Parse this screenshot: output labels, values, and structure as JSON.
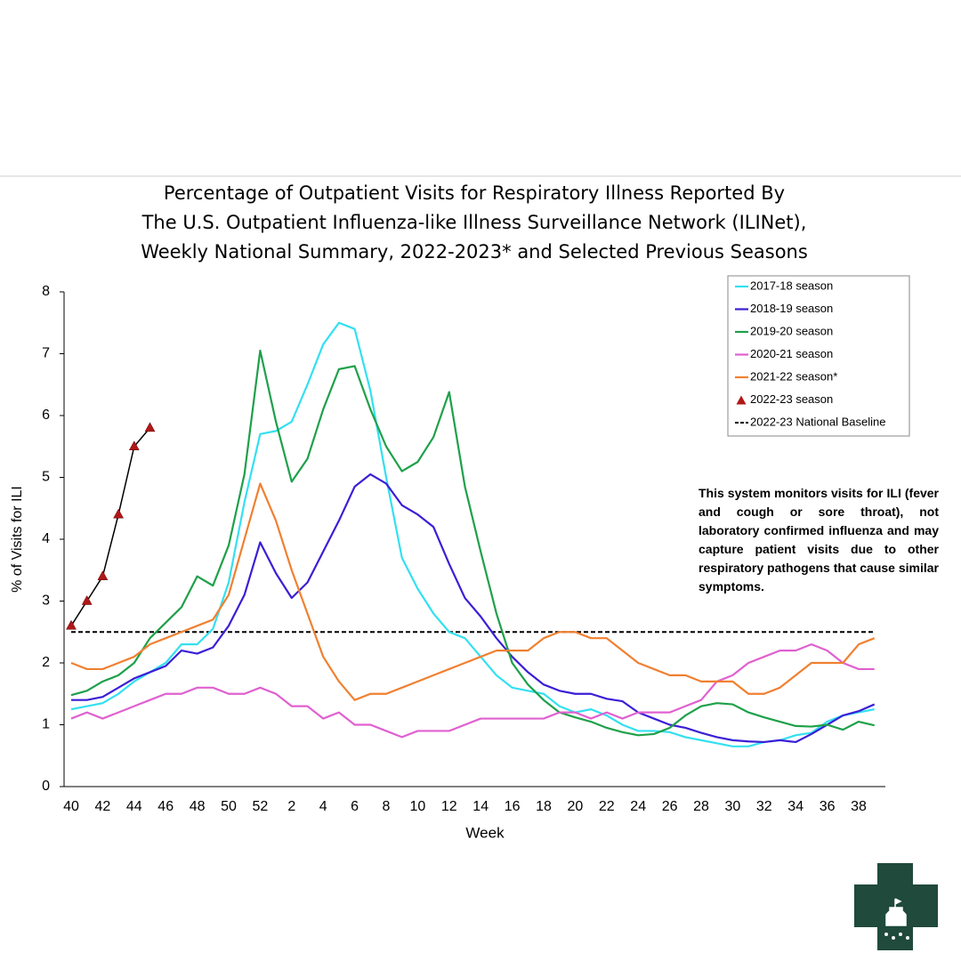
{
  "chart_data": {
    "type": "line",
    "title": [
      "Percentage of Outpatient Visits for Respiratory Illness Reported By",
      "The U.S. Outpatient Influenza-like Illness Surveillance Network (ILINet),",
      "Weekly National Summary, 2022-2023* and Selected Previous Seasons"
    ],
    "x_label": "Week",
    "y_label": "% of Visits for ILI",
    "categories": [
      "40",
      null,
      "42",
      null,
      "44",
      null,
      "46",
      null,
      "48",
      null,
      "50",
      null,
      "52",
      null,
      "2",
      null,
      "4",
      null,
      "6",
      null,
      "8",
      null,
      "10",
      null,
      "12",
      null,
      "14",
      null,
      "16",
      null,
      "18",
      null,
      "20",
      null,
      "22",
      null,
      "24",
      null,
      "26",
      null,
      "28",
      null,
      "30",
      null,
      "32",
      null,
      "34",
      null,
      "36",
      null,
      "38",
      null
    ],
    "ylim": [
      0,
      8
    ],
    "yticks": [
      0,
      1,
      2,
      3,
      4,
      5,
      6,
      7,
      8
    ],
    "series": [
      {
        "name": "2017-18 season",
        "color": "#33e0f0",
        "values": [
          1.25,
          1.3,
          1.35,
          1.5,
          1.7,
          1.85,
          2.0,
          2.3,
          2.3,
          2.55,
          3.3,
          4.6,
          5.7,
          5.75,
          5.9,
          6.5,
          7.15,
          7.5,
          7.4,
          6.4,
          5.0,
          3.7,
          3.2,
          2.8,
          2.5,
          2.4,
          2.1,
          1.8,
          1.6,
          1.55,
          1.5,
          1.3,
          1.2,
          1.25,
          1.15,
          1.0,
          0.9,
          0.9,
          0.88,
          0.8,
          0.75,
          0.7,
          0.65,
          0.65,
          0.72,
          0.75,
          0.83,
          0.87,
          1.05,
          1.15,
          1.2,
          1.25
        ]
      },
      {
        "name": "2018-19 season",
        "color": "#3a1fd6",
        "values": [
          1.4,
          1.4,
          1.45,
          1.6,
          1.75,
          1.85,
          1.95,
          2.2,
          2.15,
          2.25,
          2.6,
          3.1,
          3.95,
          3.45,
          3.05,
          3.3,
          3.8,
          4.3,
          4.85,
          5.05,
          4.9,
          4.55,
          4.4,
          4.2,
          3.6,
          3.05,
          2.75,
          2.4,
          2.1,
          1.85,
          1.65,
          1.55,
          1.5,
          1.5,
          1.42,
          1.38,
          1.2,
          1.1,
          1.0,
          0.95,
          0.87,
          0.8,
          0.75,
          0.73,
          0.72,
          0.75,
          0.72,
          0.85,
          1.0,
          1.15,
          1.22,
          1.33
        ]
      },
      {
        "name": "2019-20 season",
        "color": "#1ea04a",
        "values": [
          1.48,
          1.55,
          1.7,
          1.8,
          2.0,
          2.4,
          2.65,
          2.9,
          3.4,
          3.25,
          3.9,
          5.05,
          7.05,
          5.9,
          4.93,
          5.3,
          6.1,
          6.75,
          6.8,
          6.1,
          5.5,
          5.1,
          5.25,
          5.65,
          6.38,
          4.85,
          3.8,
          2.8,
          2.0,
          1.65,
          1.4,
          1.2,
          1.12,
          1.05,
          0.95,
          0.88,
          0.83,
          0.85,
          0.95,
          1.15,
          1.3,
          1.35,
          1.33,
          1.2,
          1.12,
          1.05,
          0.98,
          0.97,
          1.0,
          0.92,
          1.05,
          0.99
        ]
      },
      {
        "name": "2020-21 season",
        "color": "#e060d0",
        "values": [
          1.1,
          1.2,
          1.1,
          1.2,
          1.3,
          1.4,
          1.5,
          1.5,
          1.6,
          1.6,
          1.5,
          1.5,
          1.6,
          1.5,
          1.3,
          1.3,
          1.1,
          1.2,
          1.0,
          1.0,
          0.9,
          0.8,
          0.9,
          0.9,
          0.9,
          1.0,
          1.1,
          1.1,
          1.1,
          1.1,
          1.1,
          1.2,
          1.2,
          1.1,
          1.2,
          1.1,
          1.2,
          1.2,
          1.2,
          1.3,
          1.4,
          1.7,
          1.8,
          2.0,
          2.1,
          2.2,
          2.2,
          2.3,
          2.2,
          2.0,
          1.9,
          1.9
        ]
      },
      {
        "name": "2021-22 season*",
        "color": "#f08030",
        "values": [
          2.0,
          1.9,
          1.9,
          2.0,
          2.1,
          2.3,
          2.4,
          2.5,
          2.6,
          2.7,
          3.1,
          4.0,
          4.9,
          4.3,
          3.5,
          2.8,
          2.1,
          1.7,
          1.4,
          1.5,
          1.5,
          1.6,
          1.7,
          1.8,
          1.9,
          2.0,
          2.1,
          2.2,
          2.2,
          2.2,
          2.4,
          2.5,
          2.5,
          2.4,
          2.4,
          2.2,
          2.0,
          1.9,
          1.8,
          1.8,
          1.7,
          1.7,
          1.7,
          1.5,
          1.5,
          1.6,
          1.8,
          2.0,
          2.0,
          2.0,
          2.3,
          2.4
        ]
      },
      {
        "name": "2022-23 season",
        "color": "#b01818",
        "line_color": "#000000",
        "marker": "triangle",
        "values": [
          2.6,
          3.0,
          3.4,
          4.4,
          5.5,
          5.8,
          null,
          null,
          null,
          null,
          null,
          null,
          null,
          null,
          null,
          null,
          null,
          null,
          null,
          null,
          null,
          null,
          null,
          null,
          null,
          null,
          null,
          null,
          null,
          null,
          null,
          null,
          null,
          null,
          null,
          null,
          null,
          null,
          null,
          null,
          null,
          null,
          null,
          null,
          null,
          null,
          null,
          null,
          null,
          null,
          null,
          null
        ]
      }
    ],
    "baseline": {
      "name": "2022-23 National Baseline",
      "value": 2.5,
      "color": "#000000"
    },
    "annotation": "This system monitors visits for ILI (fever and cough or sore throat), not laboratory confirmed influenza and may capture patient visits due to other respiratory pathogens that cause similar symptoms."
  }
}
